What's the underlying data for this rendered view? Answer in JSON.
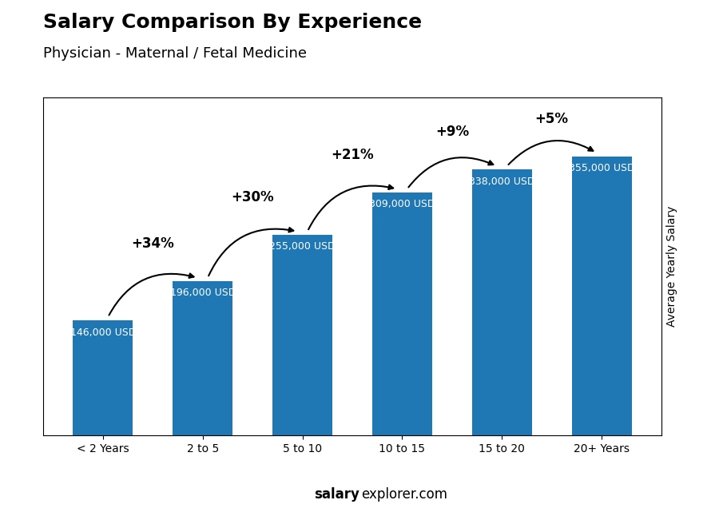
{
  "chart_data": {
    "type": "bar",
    "title": "Salary Comparison By Experience",
    "subtitle": "Physician - Maternal / Fetal Medicine",
    "y_label": "Average Yearly Salary",
    "categories": [
      "< 2 Years",
      "2 to 5",
      "5 to 10",
      "10 to 15",
      "15 to 20",
      "20+ Years"
    ],
    "values": [
      146000,
      196000,
      255000,
      309000,
      338000,
      355000
    ],
    "value_labels": [
      "146,000 USD",
      "196,000 USD",
      "255,000 USD",
      "309,000 USD",
      "338,000 USD",
      "355,000 USD"
    ],
    "data_labels": true,
    "annotations": [
      {
        "text": "+34%",
        "from": "< 2 Years",
        "to": "2 to 5"
      },
      {
        "text": "+30%",
        "from": "2 to 5",
        "to": "5 to 10"
      },
      {
        "text": "+21%",
        "from": "5 to 10",
        "to": "10 to 15"
      },
      {
        "text": "+9%",
        "from": "10 to 15",
        "to": "15 to 20"
      },
      {
        "text": "+5%",
        "from": "15 to 20",
        "to": "20+ Years"
      }
    ],
    "footer": [
      "salary",
      "explorer.com"
    ],
    "ylim": [
      0,
      430000
    ],
    "tick_labels": "x",
    "grid": false
  }
}
